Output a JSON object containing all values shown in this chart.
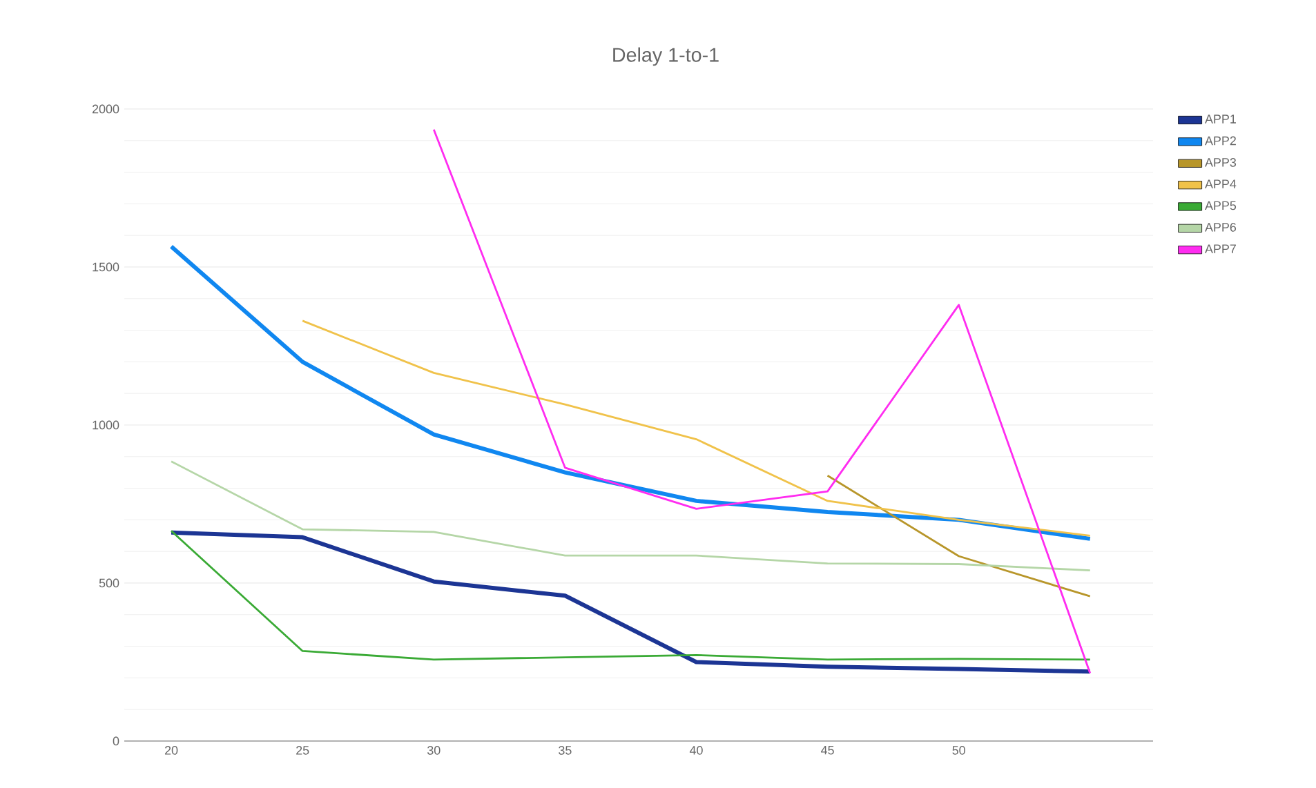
{
  "chart_data": {
    "type": "line",
    "title": "Delay 1-to-1",
    "categories": [
      "20",
      "25",
      "30",
      "35",
      "40",
      "45",
      "50",
      null
    ],
    "ylim": [
      0,
      2000
    ],
    "yticks": [
      0,
      500,
      1000,
      1500,
      2000
    ],
    "grid": "y",
    "legend": "right",
    "marker": "none",
    "line_style": "solid",
    "series": [
      {
        "name": "APP1",
        "color": "#1c3594",
        "values": [
          660,
          645,
          505,
          460,
          250,
          235,
          228,
          220
        ]
      },
      {
        "name": "APP2",
        "color": "#1087f0",
        "values": [
          1565,
          1200,
          970,
          850,
          760,
          725,
          700,
          640
        ]
      },
      {
        "name": "APP3",
        "color": "#b8962a",
        "values": [
          null,
          null,
          null,
          null,
          null,
          840,
          585,
          458
        ]
      },
      {
        "name": "APP4",
        "color": "#f0c24a",
        "values": [
          null,
          1330,
          1165,
          1065,
          955,
          760,
          700,
          650
        ]
      },
      {
        "name": "APP5",
        "color": "#3aaa35",
        "values": [
          665,
          285,
          258,
          265,
          272,
          258,
          260,
          258
        ]
      },
      {
        "name": "APP6",
        "color": "#b5d6a7",
        "values": [
          885,
          670,
          662,
          587,
          587,
          562,
          560,
          540
        ]
      },
      {
        "name": "APP7",
        "color": "#ff2cf0",
        "values": [
          null,
          null,
          1935,
          865,
          735,
          790,
          1380,
          215
        ]
      }
    ]
  }
}
